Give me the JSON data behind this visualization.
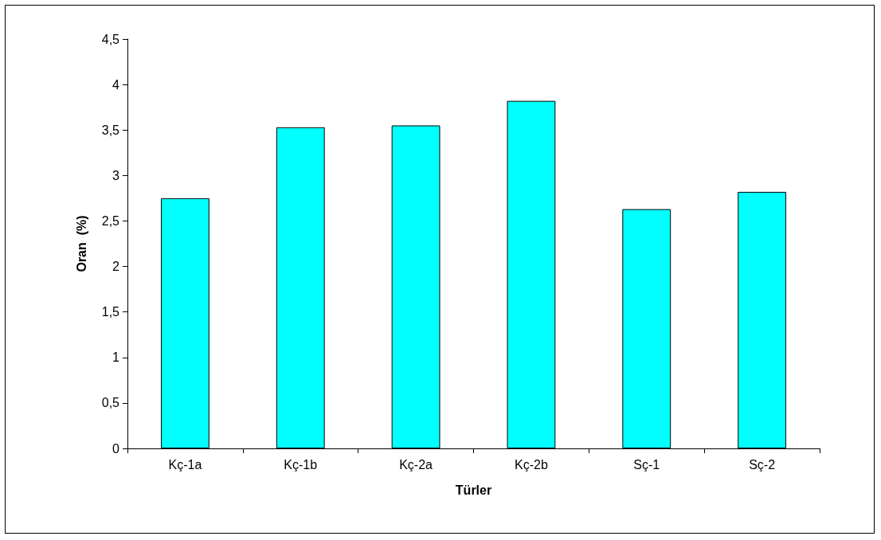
{
  "chart_data": {
    "type": "bar",
    "xlabel": "Türler",
    "ylabel": "Oran  (%)",
    "categories": [
      "Kç-1a",
      "Kç-1b",
      "Kç-2a",
      "Kç-2b",
      "Sç-1",
      "Sç-2"
    ],
    "values": [
      2.75,
      3.53,
      3.55,
      3.82,
      2.63,
      2.82
    ],
    "color": "#00ffff",
    "ylim": [
      0,
      4.5
    ],
    "yticks": [
      0,
      {
        "value": 0.5,
        "label": "0,5"
      },
      1,
      {
        "value": 1.5,
        "label": "1,5"
      },
      2,
      {
        "value": 2.5,
        "label": "2,5"
      },
      3,
      {
        "value": 3.5,
        "label": "3,5"
      },
      4,
      {
        "value": 4.5,
        "label": "4,5"
      }
    ],
    "grid": false
  }
}
